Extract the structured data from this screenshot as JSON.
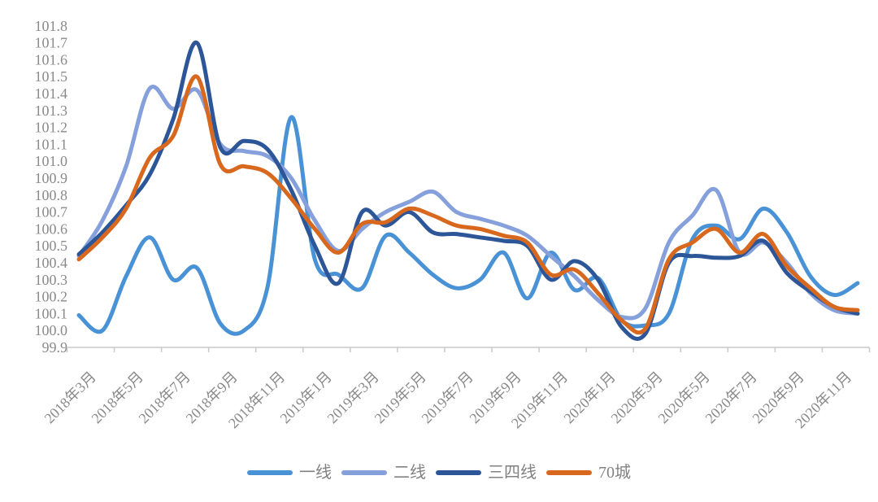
{
  "chart_data": {
    "type": "line",
    "title": "",
    "xlabel": "",
    "ylabel": "",
    "grid": false,
    "smooth": true,
    "legend_position": "bottom",
    "ylim": [
      99.9,
      101.8
    ],
    "ytick_step": 0.1,
    "x_tick_labels": [
      "2018年3月",
      "2018年5月",
      "2018年7月",
      "2018年9月",
      "2018年11月",
      "2019年1月",
      "2019年3月",
      "2019年5月",
      "2019年7月",
      "2019年9月",
      "2019年11月",
      "2020年1月",
      "2020年3月",
      "2020年5月",
      "2020年7月",
      "2020年9月",
      "2020年11月"
    ],
    "x_months": [
      "2018年3月",
      "2018年4月",
      "2018年5月",
      "2018年6月",
      "2018年7月",
      "2018年8月",
      "2018年9月",
      "2018年10月",
      "2018年11月",
      "2018年12月",
      "2019年1月",
      "2019年2月",
      "2019年3月",
      "2019年4月",
      "2019年5月",
      "2019年6月",
      "2019年7月",
      "2019年8月",
      "2019年9月",
      "2019年10月",
      "2019年11月",
      "2019年12月",
      "2020年1月",
      "2020年2月",
      "2020年3月",
      "2020年4月",
      "2020年5月",
      "2020年6月",
      "2020年7月",
      "2020年8月",
      "2020年9月",
      "2020年10月",
      "2020年11月",
      "2020年12月"
    ],
    "series": [
      {
        "name": "一线",
        "color": "#4A92D6",
        "values": [
          100.09,
          100.0,
          100.32,
          100.55,
          100.3,
          100.37,
          100.04,
          100.0,
          100.26,
          101.26,
          100.42,
          100.33,
          100.25,
          100.56,
          100.46,
          100.33,
          100.25,
          100.3,
          100.46,
          100.19,
          100.46,
          100.24,
          100.31,
          100.06,
          100.03,
          100.1,
          100.54,
          100.62,
          100.54,
          100.72,
          100.58,
          100.32,
          100.21,
          100.28
        ]
      },
      {
        "name": "二线",
        "color": "#86A0DB",
        "values": [
          100.44,
          100.65,
          100.97,
          101.43,
          101.31,
          101.42,
          101.1,
          101.06,
          101.03,
          100.9,
          100.65,
          100.47,
          100.6,
          100.7,
          100.76,
          100.82,
          100.7,
          100.66,
          100.62,
          100.56,
          100.44,
          100.32,
          100.18,
          100.08,
          100.13,
          100.52,
          100.68,
          100.83,
          100.46,
          100.52,
          100.4,
          100.22,
          100.12,
          100.1
        ]
      },
      {
        "name": "三四线",
        "color": "#2D5698",
        "values": [
          100.45,
          100.58,
          100.74,
          100.92,
          101.25,
          101.7,
          101.08,
          101.12,
          101.07,
          100.83,
          100.5,
          100.28,
          100.7,
          100.62,
          100.7,
          100.58,
          100.57,
          100.55,
          100.53,
          100.5,
          100.3,
          100.41,
          100.3,
          100.02,
          99.98,
          100.4,
          100.44,
          100.43,
          100.44,
          100.53,
          100.34,
          100.23,
          100.14,
          100.1
        ]
      },
      {
        "name": "70城",
        "color": "#D8681E",
        "values": [
          100.42,
          100.55,
          100.72,
          101.02,
          101.15,
          101.5,
          100.98,
          100.97,
          100.93,
          100.78,
          100.6,
          100.46,
          100.63,
          100.64,
          100.72,
          100.68,
          100.62,
          100.6,
          100.56,
          100.52,
          100.33,
          100.36,
          100.22,
          100.06,
          100.01,
          100.42,
          100.52,
          100.6,
          100.46,
          100.57,
          100.38,
          100.25,
          100.14,
          100.12
        ]
      }
    ],
    "axis_color": "#c9c9c9",
    "label_color": "#8a8a8a"
  }
}
